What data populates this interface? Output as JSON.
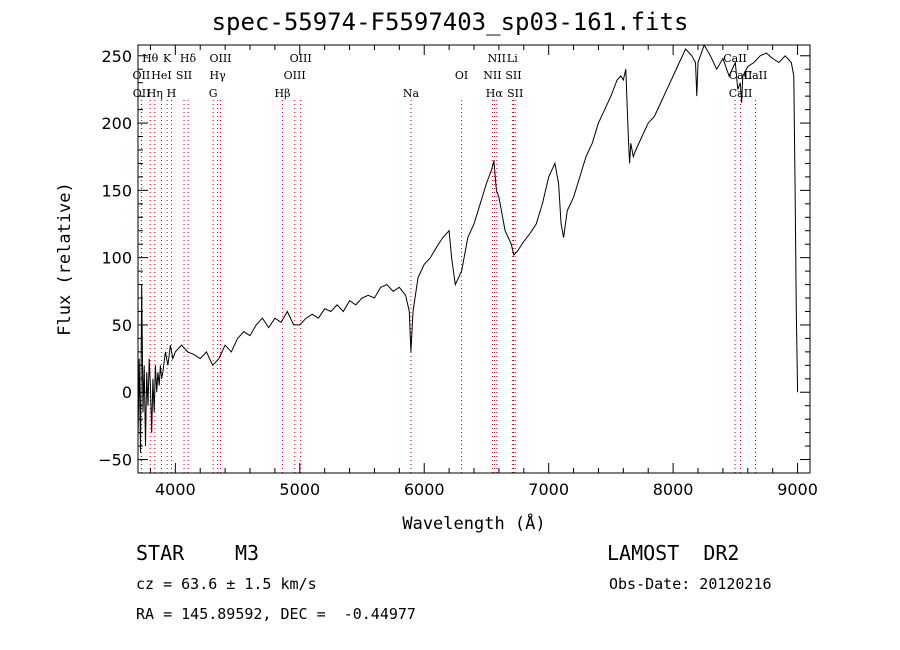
{
  "title": "spec-55974-F5597403_sp03-161.fits",
  "info": {
    "class": "STAR",
    "subclass": "M3",
    "survey": "LAMOST  DR2",
    "cz": "cz = 63.6 ± 1.5 km/s",
    "obs_date": "Obs-Date: 20120216",
    "coords": "RA = 145.89592, DEC =  -0.44977"
  },
  "chart_data": {
    "type": "line",
    "xlabel": "Wavelength (Å)",
    "ylabel": "Flux (relative)",
    "xlim": [
      3700,
      9100
    ],
    "ylim": [
      -60,
      258
    ],
    "xticks": [
      4000,
      5000,
      6000,
      7000,
      8000,
      9000
    ],
    "xtick_labels": [
      "4000",
      "5000",
      "6000",
      "7000",
      "8000",
      "9000"
    ],
    "yticks": [
      -50,
      0,
      50,
      100,
      150,
      200,
      250
    ],
    "ytick_labels": [
      "−50",
      "0",
      "50",
      "100",
      "150",
      "200",
      "250"
    ],
    "line_color": "#000000",
    "marker_color": "#cc0000",
    "spectral_lines": [
      {
        "label": "Hθ",
        "wavelength": 3798,
        "row": 0
      },
      {
        "label": "K",
        "wavelength": 3934,
        "row": 0
      },
      {
        "label": "Hδ",
        "wavelength": 4102,
        "row": 0
      },
      {
        "label": "OIII",
        "wavelength": 4363,
        "row": 0
      },
      {
        "label": "OIII",
        "wavelength": 5007,
        "row": 0
      },
      {
        "label": "NII",
        "wavelength": 6583,
        "row": 0
      },
      {
        "label": "Li",
        "wavelength": 6708,
        "row": 0
      },
      {
        "label": "CaII",
        "wavelength": 8498,
        "row": 0
      },
      {
        "label": "OII",
        "wavelength": 3727,
        "row": 1
      },
      {
        "label": "HeI",
        "wavelength": 3889,
        "row": 1
      },
      {
        "label": "SII",
        "wavelength": 4070,
        "row": 1
      },
      {
        "label": "Hγ",
        "wavelength": 4340,
        "row": 1
      },
      {
        "label": "OIII",
        "wavelength": 4959,
        "row": 1
      },
      {
        "label": "OI",
        "wavelength": 6300,
        "row": 1
      },
      {
        "label": "NII",
        "wavelength": 6548,
        "row": 1
      },
      {
        "label": "SII",
        "wavelength": 6717,
        "row": 1
      },
      {
        "label": "CaII",
        "wavelength": 8542,
        "row": 1
      },
      {
        "label": "CaII",
        "wavelength": 8662,
        "row": 1
      },
      {
        "label": "OII",
        "wavelength": 3729,
        "row": 2
      },
      {
        "label": "Hη",
        "wavelength": 3835,
        "row": 2
      },
      {
        "label": "H",
        "wavelength": 3969,
        "row": 2
      },
      {
        "label": "G",
        "wavelength": 4304,
        "row": 2
      },
      {
        "label": "Hβ",
        "wavelength": 4861,
        "row": 2
      },
      {
        "label": "Na",
        "wavelength": 5893,
        "row": 2
      },
      {
        "label": "Hα",
        "wavelength": 6563,
        "row": 2
      },
      {
        "label": "SII",
        "wavelength": 6731,
        "row": 2
      },
      {
        "label": "CaII",
        "wavelength": 8542,
        "row": 2
      }
    ],
    "x": [
      3700,
      3710,
      3720,
      3730,
      3740,
      3750,
      3760,
      3770,
      3780,
      3790,
      3800,
      3810,
      3820,
      3830,
      3840,
      3850,
      3860,
      3870,
      3880,
      3890,
      3900,
      3920,
      3940,
      3960,
      3980,
      4000,
      4050,
      4100,
      4150,
      4200,
      4250,
      4300,
      4350,
      4400,
      4450,
      4500,
      4550,
      4600,
      4650,
      4700,
      4750,
      4800,
      4850,
      4900,
      4950,
      5000,
      5050,
      5100,
      5150,
      5200,
      5250,
      5300,
      5350,
      5400,
      5450,
      5500,
      5550,
      5600,
      5650,
      5700,
      5750,
      5800,
      5850,
      5880,
      5893,
      5910,
      5950,
      6000,
      6050,
      6100,
      6150,
      6200,
      6220,
      6250,
      6300,
      6350,
      6400,
      6450,
      6500,
      6540,
      6560,
      6580,
      6600,
      6650,
      6700,
      6720,
      6750,
      6800,
      6850,
      6900,
      6950,
      7000,
      7050,
      7080,
      7100,
      7120,
      7150,
      7200,
      7250,
      7300,
      7350,
      7400,
      7450,
      7500,
      7550,
      7580,
      7600,
      7620,
      7640,
      7650,
      7660,
      7680,
      7700,
      7750,
      7800,
      7850,
      7900,
      7950,
      8000,
      8050,
      8100,
      8150,
      8180,
      8190,
      8200,
      8250,
      8300,
      8350,
      8400,
      8450,
      8500,
      8520,
      8540,
      8550,
      8560,
      8600,
      8650,
      8700,
      8750,
      8800,
      8850,
      8900,
      8950,
      8970,
      8980,
      8990,
      9000
    ],
    "y": [
      -35,
      25,
      -45,
      80,
      -15,
      20,
      -40,
      15,
      -10,
      25,
      5,
      -30,
      10,
      -15,
      20,
      0,
      15,
      5,
      20,
      10,
      15,
      30,
      20,
      35,
      25,
      30,
      35,
      30,
      28,
      25,
      30,
      20,
      25,
      35,
      30,
      40,
      45,
      42,
      50,
      55,
      48,
      55,
      52,
      60,
      50,
      50,
      55,
      58,
      55,
      62,
      60,
      65,
      60,
      68,
      65,
      70,
      72,
      70,
      78,
      80,
      75,
      78,
      72,
      60,
      30,
      60,
      85,
      95,
      100,
      108,
      115,
      120,
      100,
      80,
      90,
      115,
      125,
      140,
      155,
      165,
      172,
      150,
      145,
      120,
      110,
      102,
      105,
      112,
      118,
      125,
      140,
      160,
      170,
      155,
      125,
      115,
      135,
      145,
      160,
      175,
      185,
      200,
      210,
      220,
      232,
      235,
      232,
      240,
      190,
      170,
      185,
      175,
      180,
      190,
      200,
      205,
      215,
      225,
      235,
      245,
      255,
      250,
      245,
      220,
      245,
      258,
      250,
      240,
      248,
      235,
      245,
      225,
      230,
      215,
      235,
      242,
      245,
      250,
      252,
      248,
      245,
      250,
      245,
      235,
      150,
      60,
      0
    ]
  }
}
